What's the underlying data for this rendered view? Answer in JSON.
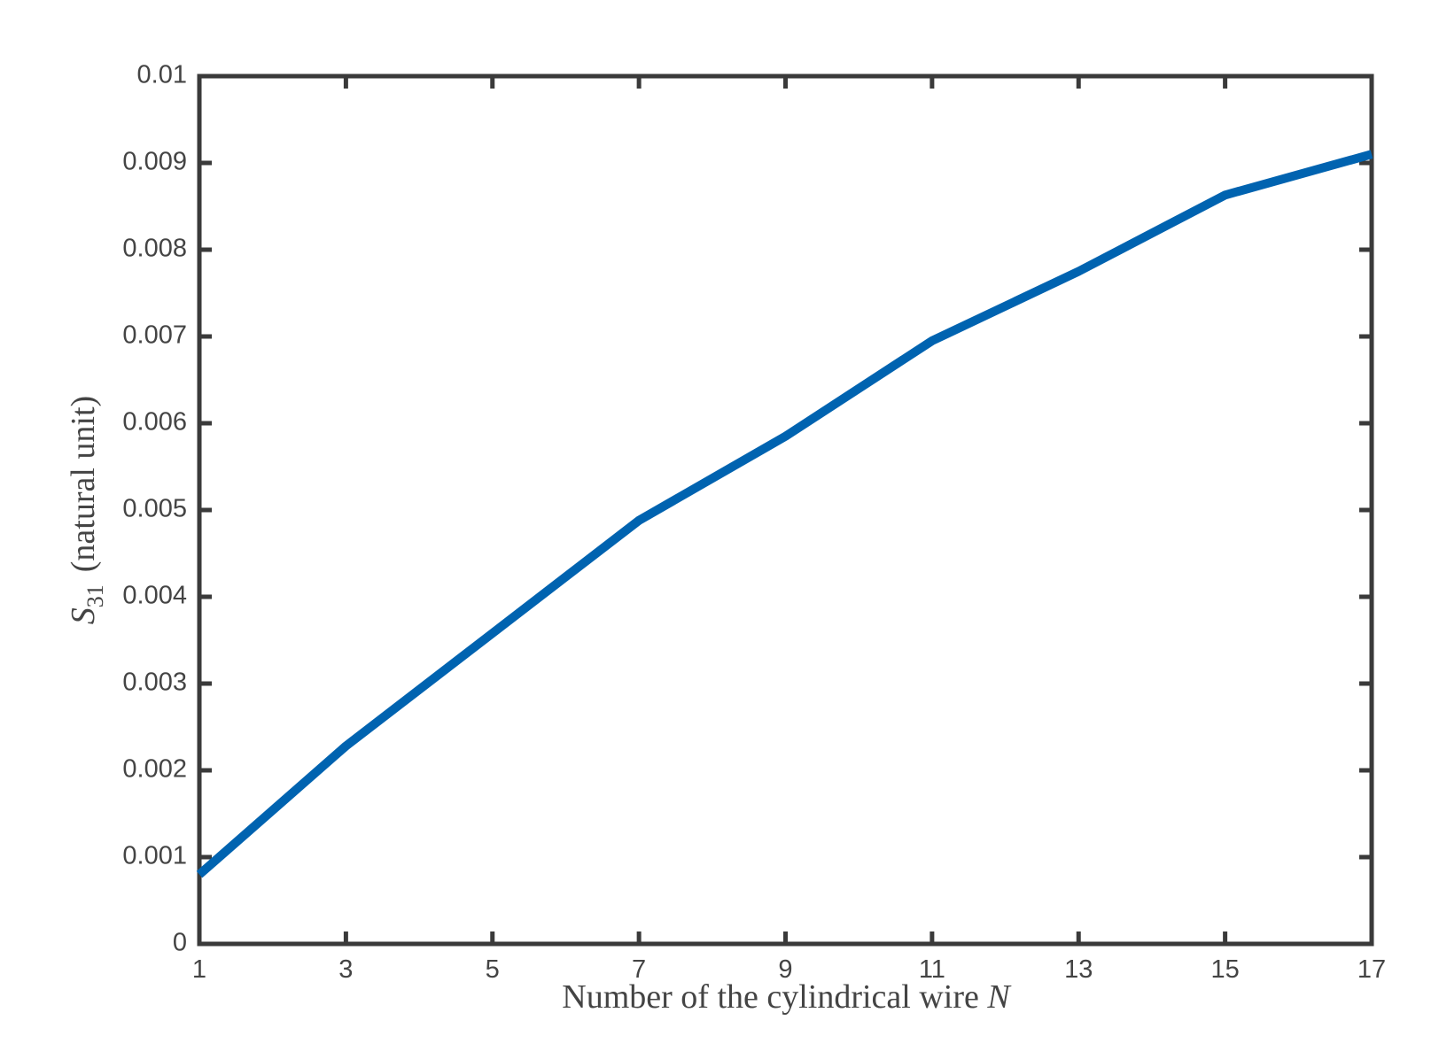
{
  "chart_data": {
    "type": "line",
    "x_label": {
      "text": "Number of the cylindrical wire",
      "symbol": "N"
    },
    "y_label": {
      "symbol": "S",
      "subscript": "31",
      "text": "(natural unit)"
    },
    "x": [
      1,
      3,
      5,
      7,
      9,
      11,
      13,
      15,
      17
    ],
    "values": [
      0.0008,
      0.00228,
      0.00358,
      0.00488,
      0.00585,
      0.00695,
      0.00775,
      0.00863,
      0.0091
    ],
    "color": "#0063b0",
    "xlim": [
      1,
      17
    ],
    "xticks": [
      1,
      3,
      5,
      7,
      9,
      11,
      13,
      15,
      17
    ],
    "ylim": [
      0,
      0.01
    ],
    "yticks": [
      0,
      0.001,
      0.002,
      0.003,
      0.004,
      0.005,
      0.006,
      0.007,
      0.008,
      0.009,
      0.01
    ],
    "grid": false
  }
}
